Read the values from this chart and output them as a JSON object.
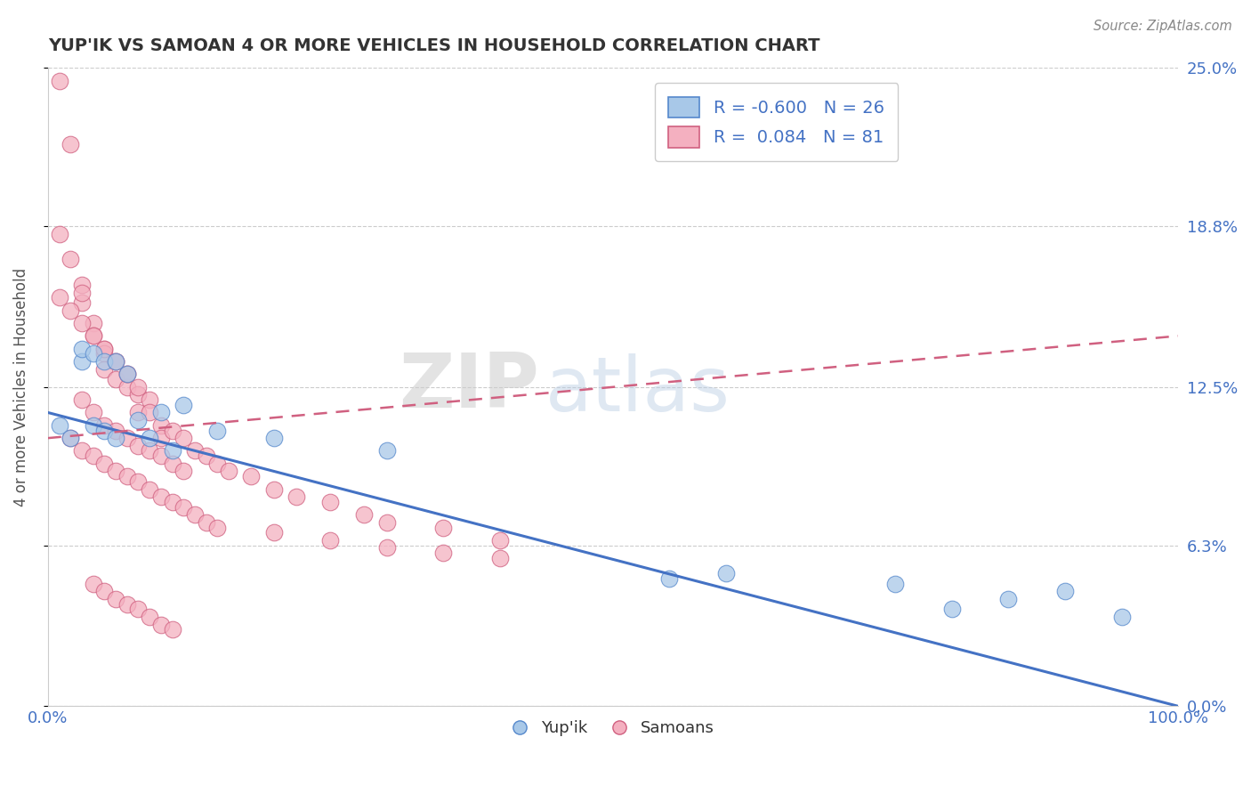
{
  "title": "YUP'IK VS SAMOAN 4 OR MORE VEHICLES IN HOUSEHOLD CORRELATION CHART",
  "source_text": "Source: ZipAtlas.com",
  "ylabel": "4 or more Vehicles in Household",
  "xlim": [
    0,
    100
  ],
  "ylim": [
    0,
    25
  ],
  "ytick_labels": [
    "0.0%",
    "6.3%",
    "12.5%",
    "18.8%",
    "25.0%"
  ],
  "ytick_values": [
    0,
    6.3,
    12.5,
    18.8,
    25.0
  ],
  "legend_r_blue": "-0.600",
  "legend_n_blue": "26",
  "legend_r_pink": "0.084",
  "legend_n_pink": "81",
  "legend_labels": [
    "Yup'ik",
    "Samoans"
  ],
  "blue_color": "#a8c8e8",
  "pink_color": "#f4b0c0",
  "blue_edge_color": "#5588cc",
  "pink_edge_color": "#d06080",
  "line_blue_color": "#4472c4",
  "line_pink_color": "#d06080",
  "blue_scatter_x": [
    1,
    2,
    3,
    3,
    4,
    4,
    5,
    5,
    6,
    6,
    7,
    8,
    9,
    10,
    11,
    12,
    15,
    20,
    55,
    60,
    75,
    80,
    85,
    90,
    95,
    30
  ],
  "blue_scatter_y": [
    11.0,
    10.5,
    13.5,
    14.0,
    13.8,
    11.0,
    13.5,
    10.8,
    13.5,
    10.5,
    13.0,
    11.2,
    10.5,
    11.5,
    10.0,
    11.8,
    10.8,
    10.5,
    5.0,
    5.2,
    4.8,
    3.8,
    4.2,
    4.5,
    3.5,
    10.0
  ],
  "pink_scatter_x": [
    1,
    1,
    2,
    2,
    3,
    3,
    3,
    4,
    4,
    5,
    5,
    5,
    6,
    6,
    7,
    7,
    8,
    8,
    9,
    9,
    10,
    10,
    11,
    12,
    13,
    14,
    15,
    16,
    18,
    20,
    22,
    25,
    28,
    30,
    35,
    40,
    1,
    2,
    3,
    4,
    5,
    6,
    7,
    8,
    2,
    3,
    4,
    5,
    6,
    7,
    8,
    9,
    10,
    11,
    12,
    13,
    14,
    15,
    20,
    25,
    30,
    35,
    40,
    3,
    4,
    5,
    6,
    7,
    8,
    9,
    10,
    11,
    12,
    4,
    5,
    6,
    7,
    8,
    9,
    10,
    11
  ],
  "pink_scatter_y": [
    24.5,
    18.5,
    22.0,
    17.5,
    16.5,
    15.8,
    16.2,
    15.0,
    14.5,
    14.0,
    13.8,
    13.2,
    13.5,
    12.8,
    12.5,
    13.0,
    12.2,
    11.5,
    12.0,
    11.5,
    11.0,
    10.5,
    10.8,
    10.5,
    10.0,
    9.8,
    9.5,
    9.2,
    9.0,
    8.5,
    8.2,
    8.0,
    7.5,
    7.2,
    7.0,
    6.5,
    16.0,
    15.5,
    15.0,
    14.5,
    14.0,
    13.5,
    13.0,
    12.5,
    10.5,
    10.0,
    9.8,
    9.5,
    9.2,
    9.0,
    8.8,
    8.5,
    8.2,
    8.0,
    7.8,
    7.5,
    7.2,
    7.0,
    6.8,
    6.5,
    6.2,
    6.0,
    5.8,
    12.0,
    11.5,
    11.0,
    10.8,
    10.5,
    10.2,
    10.0,
    9.8,
    9.5,
    9.2,
    4.8,
    4.5,
    4.2,
    4.0,
    3.8,
    3.5,
    3.2,
    3.0
  ],
  "watermark_zip": "ZIP",
  "watermark_atlas": "atlas",
  "background_color": "#ffffff",
  "grid_color": "#cccccc",
  "title_color": "#333333",
  "axis_label_color": "#555555",
  "tick_label_color": "#4472c4",
  "source_color": "#888888"
}
